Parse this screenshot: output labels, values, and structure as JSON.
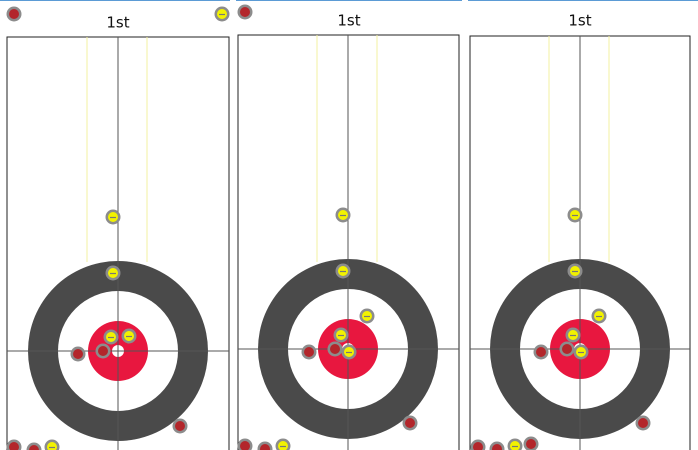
{
  "panels": [
    {
      "title": "1st"
    },
    {
      "title": "1st"
    },
    {
      "title": "1st"
    }
  ]
}
